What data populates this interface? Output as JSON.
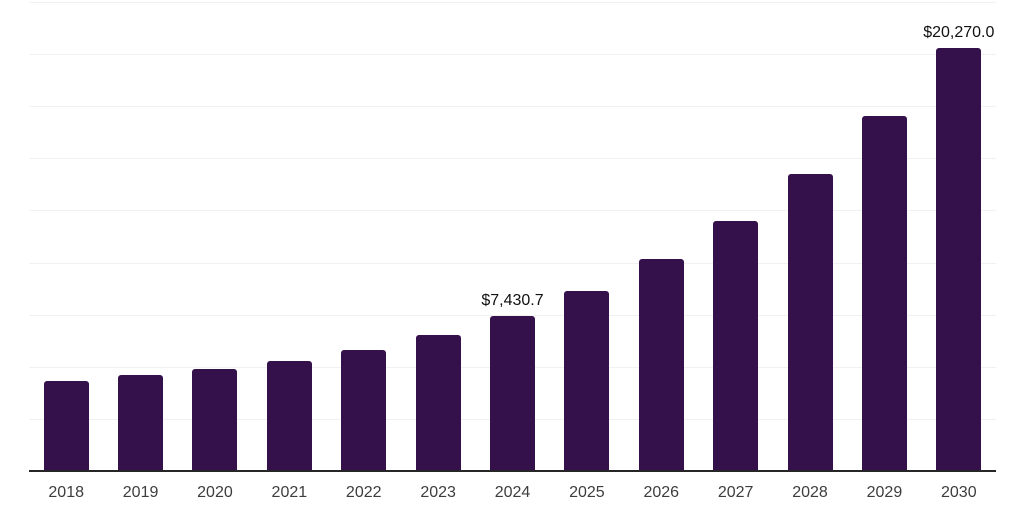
{
  "chart_data": {
    "type": "bar",
    "title": "",
    "xlabel": "",
    "ylabel": "",
    "categories": [
      "2018",
      "2019",
      "2020",
      "2021",
      "2022",
      "2023",
      "2024",
      "2025",
      "2026",
      "2027",
      "2028",
      "2029",
      "2030"
    ],
    "values": [
      4300,
      4600,
      4910,
      5270,
      5800,
      6510,
      7430.7,
      8620,
      10150,
      11980,
      14230,
      17050,
      20270
    ],
    "labels": [
      "",
      "",
      "",
      "",
      "",
      "",
      "$7,430.7",
      "",
      "",
      "",
      "",
      "",
      "$20,270.0"
    ],
    "ylim": [
      0,
      22500
    ],
    "gridline_step": 2500,
    "grid": true,
    "legend": "none",
    "colors": {
      "bar": "#34114A",
      "axis_line": "#262626",
      "gridline": "#f1f1f1",
      "tick_label": "#3d3d3d",
      "data_label": "#111111"
    }
  }
}
